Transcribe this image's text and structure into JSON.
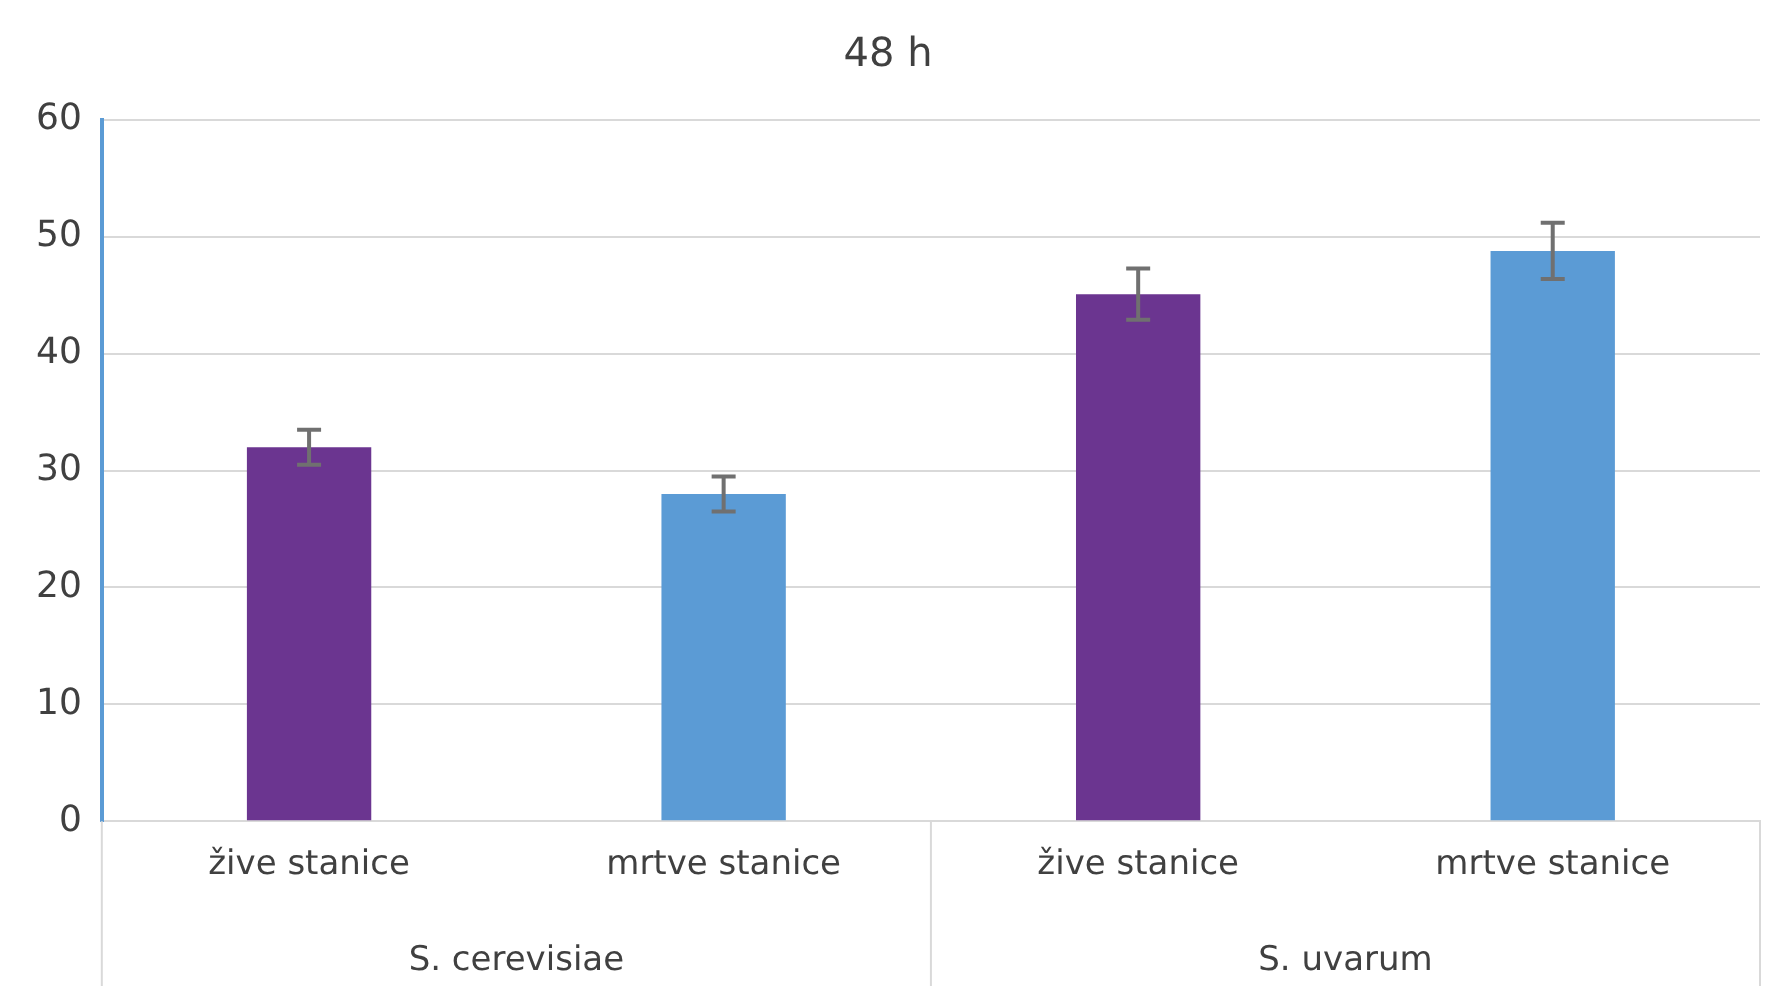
{
  "chart_data": {
    "type": "bar",
    "title": "48 h",
    "categories": [
      "žive stanice",
      "mrtve stanice",
      "žive stanice",
      "mrtve stanice"
    ],
    "values": [
      32,
      28,
      45.1,
      48.8
    ],
    "errors": [
      1.5,
      1.5,
      2.2,
      2.4
    ],
    "colors": [
      "#6b3590",
      "#5b9bd5",
      "#6b3590",
      "#5b9bd5"
    ],
    "ylim": [
      0,
      60
    ],
    "yticks": [
      0,
      10,
      20,
      30,
      40,
      50,
      60
    ],
    "grid": "y",
    "annotations": [
      "S. cerevisiae",
      "S. uvarum"
    ]
  }
}
